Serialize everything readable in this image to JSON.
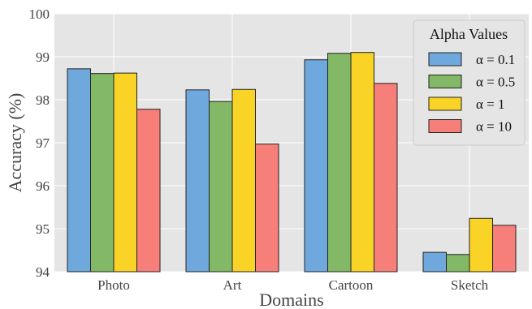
{
  "chart_data": {
    "type": "bar",
    "xlabel": "Domains",
    "ylabel": "Accuracy (%)",
    "ylim": [
      94,
      100
    ],
    "yticks": [
      94,
      95,
      96,
      97,
      98,
      99,
      100
    ],
    "grid": true,
    "categories": [
      "Photo",
      "Art",
      "Cartoon",
      "Sketch"
    ],
    "legend": {
      "title": "Alpha Values",
      "position": "top-right"
    },
    "series": [
      {
        "name": "α = 0.1",
        "color": "#6fa8dc",
        "values": [
          98.72,
          98.23,
          98.93,
          94.45
        ]
      },
      {
        "name": "α = 0.5",
        "color": "#82b866",
        "values": [
          98.61,
          97.96,
          99.08,
          94.4
        ]
      },
      {
        "name": "α = 1",
        "color": "#f9d326",
        "values": [
          98.62,
          98.24,
          99.1,
          95.24
        ]
      },
      {
        "name": "α = 10",
        "color": "#f77f7a",
        "values": [
          97.78,
          96.97,
          98.38,
          95.08
        ]
      }
    ]
  }
}
